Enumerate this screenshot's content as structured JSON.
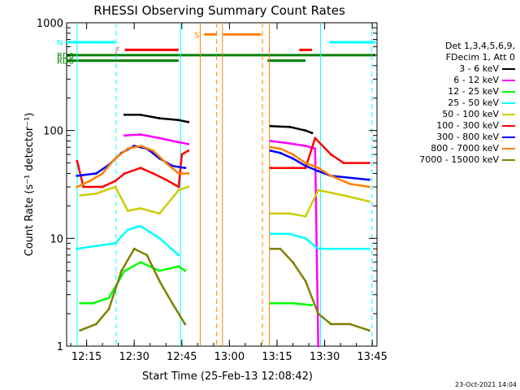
{
  "title": "RHESSI Observing Summary Count Rates",
  "legend": {
    "header1": "Det 1,3,4,5,6,9,",
    "header2": "FDecim 1, Att 0"
  },
  "timestamp": "23-Oct-2021 14:04",
  "chart_data": {
    "type": "line",
    "title": "RHESSI Observing Summary Count Rates",
    "xlabel": "Start Time (25-Feb-13 12:08:42)",
    "ylabel": "Count Rate (s⁻¹ detector⁻¹)",
    "x_ticks": [
      "12:15",
      "12:30",
      "12:45",
      "13:00",
      "13:15",
      "13:30",
      "13:45"
    ],
    "x_tick_minutes": [
      15,
      30,
      45,
      60,
      75,
      90,
      105
    ],
    "xlim_minutes": [
      8.7,
      106.5
    ],
    "ylog": true,
    "ylim": [
      1,
      1000
    ],
    "y_ticks": [
      "1",
      "10",
      "100",
      "1000"
    ],
    "colors": [
      "#000000",
      "#ff00ff",
      "#00ff00",
      "#00ffff",
      "#cccc00",
      "#ff0000",
      "#0000ff",
      "#ff8000",
      "#808000"
    ],
    "series": [
      {
        "name": "3 - 6 keV",
        "color": "#000000",
        "values": [
          [
            27,
            140
          ],
          [
            32,
            140
          ],
          [
            38,
            130
          ],
          [
            44,
            125
          ],
          [
            47,
            120
          ],
          [
            73,
            110
          ],
          [
            79,
            108
          ],
          [
            84,
            100
          ],
          [
            86,
            95
          ]
        ]
      },
      {
        "name": "6 - 12 keV",
        "color": "#ff00ff",
        "values": [
          [
            27,
            90
          ],
          [
            32,
            92
          ],
          [
            38,
            85
          ],
          [
            44,
            78
          ],
          [
            47,
            75
          ],
          [
            73,
            80
          ],
          [
            79,
            76
          ],
          [
            84,
            72
          ],
          [
            87,
            68
          ],
          [
            88,
            1
          ]
        ]
      },
      {
        "name": "12 - 25 keV",
        "color": "#00ff00",
        "values": [
          [
            13,
            2.5
          ],
          [
            17,
            2.5
          ],
          [
            22,
            2.8
          ],
          [
            27,
            5
          ],
          [
            32,
            6
          ],
          [
            38,
            5
          ],
          [
            44,
            5.5
          ],
          [
            46,
            5
          ],
          [
            73,
            2.5
          ],
          [
            80,
            2.5
          ],
          [
            86,
            2.4
          ]
        ]
      },
      {
        "name": "25 - 50 keV",
        "color": "#00ffff",
        "values": [
          [
            12,
            8
          ],
          [
            18,
            8.5
          ],
          [
            24,
            9
          ],
          [
            28,
            12
          ],
          [
            32,
            13
          ],
          [
            38,
            10
          ],
          [
            44,
            7
          ],
          [
            73,
            11
          ],
          [
            79,
            11
          ],
          [
            84,
            10
          ],
          [
            88,
            8
          ],
          [
            92,
            8
          ],
          [
            104,
            8
          ]
        ]
      },
      {
        "name": "50 - 100 keV",
        "color": "#cccc00",
        "values": [
          [
            13,
            25
          ],
          [
            18,
            26
          ],
          [
            24,
            30
          ],
          [
            28,
            18
          ],
          [
            32,
            19
          ],
          [
            38,
            17
          ],
          [
            44,
            28
          ],
          [
            47,
            30
          ],
          [
            73,
            17
          ],
          [
            79,
            17
          ],
          [
            84,
            16
          ],
          [
            88,
            28
          ],
          [
            96,
            25
          ],
          [
            104,
            22
          ]
        ]
      },
      {
        "name": "100 - 300 keV",
        "color": "#ff0000",
        "values": [
          [
            12,
            52
          ],
          [
            14,
            30
          ],
          [
            20,
            30
          ],
          [
            24,
            34
          ],
          [
            27,
            40
          ],
          [
            32,
            45
          ],
          [
            36,
            40
          ],
          [
            40,
            35
          ],
          [
            44,
            30
          ],
          [
            45,
            60
          ],
          [
            47,
            65
          ],
          [
            73,
            45
          ],
          [
            80,
            45
          ],
          [
            84,
            45
          ],
          [
            87,
            85
          ],
          [
            92,
            60
          ],
          [
            96,
            50
          ],
          [
            104,
            50
          ]
        ]
      },
      {
        "name": "300 - 800 keV",
        "color": "#0000ff",
        "values": [
          [
            12,
            38
          ],
          [
            18,
            40
          ],
          [
            22,
            48
          ],
          [
            26,
            62
          ],
          [
            30,
            72
          ],
          [
            34,
            68
          ],
          [
            38,
            55
          ],
          [
            42,
            47
          ],
          [
            46,
            45
          ],
          [
            73,
            65
          ],
          [
            76,
            62
          ],
          [
            80,
            55
          ],
          [
            84,
            47
          ],
          [
            88,
            42
          ],
          [
            92,
            38
          ],
          [
            104,
            35
          ]
        ]
      },
      {
        "name": "800 - 7000 keV",
        "color": "#ff8000",
        "values": [
          [
            12,
            30
          ],
          [
            16,
            34
          ],
          [
            20,
            40
          ],
          [
            24,
            55
          ],
          [
            28,
            68
          ],
          [
            32,
            72
          ],
          [
            36,
            65
          ],
          [
            40,
            50
          ],
          [
            44,
            40
          ],
          [
            47,
            40
          ],
          [
            73,
            70
          ],
          [
            76,
            68
          ],
          [
            80,
            60
          ],
          [
            84,
            50
          ],
          [
            88,
            45
          ],
          [
            92,
            38
          ],
          [
            98,
            32
          ],
          [
            104,
            30
          ]
        ]
      },
      {
        "name": "7000 - 15000 keV",
        "color": "#808000",
        "values": [
          [
            13,
            1.4
          ],
          [
            18,
            1.6
          ],
          [
            22,
            2.2
          ],
          [
            26,
            5
          ],
          [
            30,
            8
          ],
          [
            34,
            7
          ],
          [
            38,
            4
          ],
          [
            42,
            2.5
          ],
          [
            46,
            1.6
          ],
          [
            73,
            8
          ],
          [
            76,
            8
          ],
          [
            80,
            6
          ],
          [
            84,
            4
          ],
          [
            88,
            2
          ],
          [
            92,
            1.6
          ],
          [
            98,
            1.6
          ],
          [
            104,
            1.4
          ]
        ]
      }
    ],
    "flags": [
      {
        "label": "N",
        "color": "#00ffff",
        "level": 660,
        "segments": [
          [
            8.7,
            24
          ],
          [
            91.5,
            106
          ]
        ]
      },
      {
        "label": "F",
        "color": "#ff0000",
        "level": 560,
        "segments": [
          [
            27,
            44
          ]
        ]
      },
      {
        "label": "",
        "color": "#ff0000",
        "level": 560,
        "segments": [
          [
            82,
            86
          ]
        ]
      },
      {
        "label": "S",
        "color": "#ff8000",
        "level": 780,
        "segments": [
          [
            52,
            56
          ],
          [
            58,
            70
          ]
        ]
      },
      {
        "label": "RD0",
        "color": "#008000",
        "level": 500,
        "segments": [
          [
            8.7,
            44
          ],
          [
            44,
            70
          ],
          [
            70,
            76
          ],
          [
            76,
            106
          ]
        ]
      },
      {
        "label": "RD6",
        "color": "#008000",
        "level": 445,
        "segments": [
          [
            8.7,
            44
          ],
          [
            72,
            84
          ]
        ]
      }
    ],
    "vlines": [
      {
        "minutes": 12.0,
        "color": "#00ffff",
        "dashed": false
      },
      {
        "minutes": 24.3,
        "color": "#00ffff",
        "dashed": true
      },
      {
        "minutes": 44.6,
        "color": "#00ffff",
        "dashed": false
      },
      {
        "minutes": 50.8,
        "color": "#ff8000",
        "dashed": false
      },
      {
        "minutes": 56.0,
        "color": "#ff8000",
        "dashed": true
      },
      {
        "minutes": 57.8,
        "color": "#ff8000",
        "dashed": false
      },
      {
        "minutes": 70.4,
        "color": "#ff8000",
        "dashed": true
      },
      {
        "minutes": 72.6,
        "color": "#ff8000",
        "dashed": false
      },
      {
        "minutes": 88.7,
        "color": "#00ffff",
        "dashed": false
      },
      {
        "minutes": 104.9,
        "color": "#00ffff",
        "dashed": true
      }
    ]
  }
}
